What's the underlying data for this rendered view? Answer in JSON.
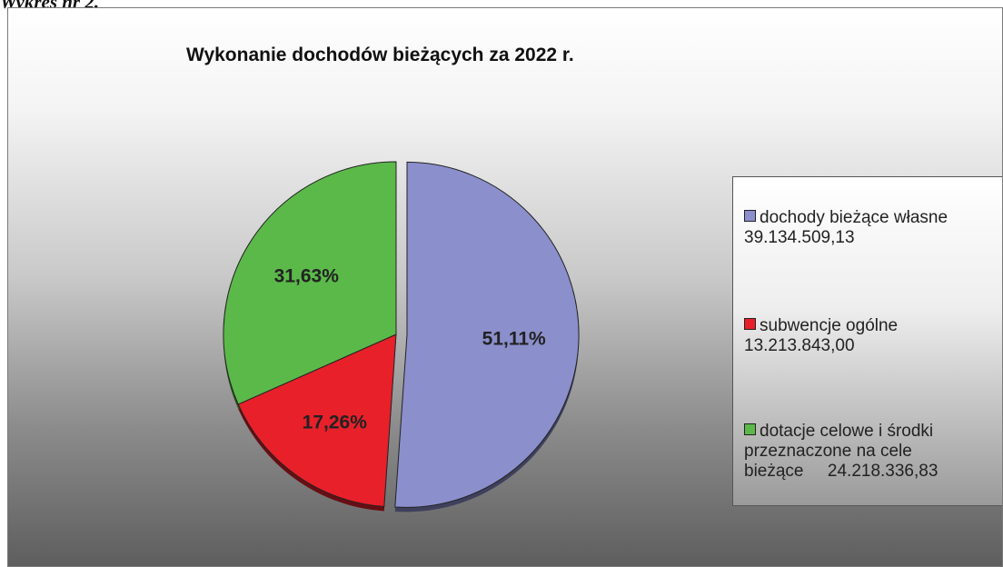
{
  "caption": "Wykres nr 2.",
  "chart_data": {
    "type": "pie",
    "title": "Wykonanie dochodów bieżących za 2022 r.",
    "slices": [
      {
        "label": "dochody bieżące własne",
        "amount_text": "39.134.509,13",
        "value": 51.11,
        "percent_label": "51,11%",
        "color": "#8b8fcc",
        "exploded": true
      },
      {
        "label": "subwencje ogólne",
        "amount_text": "13.213.843,00",
        "value": 17.26,
        "percent_label": "17,26%",
        "color": "#e8202a",
        "exploded": false
      },
      {
        "label": "dotacje celowe i środki przeznaczone na cele bieżące",
        "amount_text": "24.218.336,83",
        "value": 31.63,
        "percent_label": "31,63%",
        "color": "#5bb94a",
        "exploded": false
      }
    ],
    "legend_position": "right"
  }
}
